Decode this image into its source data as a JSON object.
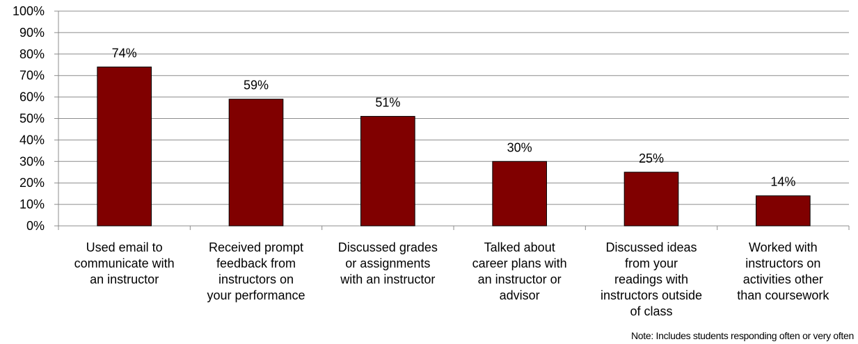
{
  "chart_data": {
    "type": "bar",
    "categories": [
      "Used email to communicate with an instructor",
      "Received prompt feedback from instructors on your performance",
      "Discussed grades or assignments with an instructor",
      "Talked about career plans with an instructor or advisor",
      "Discussed ideas from your readings with instructors outside of class",
      "Worked with instructors on activities other than coursework"
    ],
    "category_lines": [
      [
        "Used email to",
        "communicate with",
        "an instructor"
      ],
      [
        "Received prompt",
        "feedback from",
        "instructors on",
        "your performance"
      ],
      [
        "Discussed grades",
        "or assignments",
        "with an instructor"
      ],
      [
        "Talked about",
        "career plans with",
        "an instructor or",
        "advisor"
      ],
      [
        "Discussed ideas",
        "from your",
        "readings with",
        "instructors outside",
        "of class"
      ],
      [
        "Worked with",
        "instructors on",
        "activities other",
        "than coursework"
      ]
    ],
    "values": [
      74,
      59,
      51,
      30,
      25,
      14
    ],
    "data_labels": [
      "74%",
      "59%",
      "51%",
      "30%",
      "25%",
      "14%"
    ],
    "ylim": [
      0,
      100
    ],
    "yticks": [
      "0%",
      "10%",
      "20%",
      "30%",
      "40%",
      "50%",
      "60%",
      "70%",
      "80%",
      "90%",
      "100%"
    ],
    "grid": true,
    "bar_color": "#800000"
  },
  "note": "Note: Includes students responding often or very often"
}
